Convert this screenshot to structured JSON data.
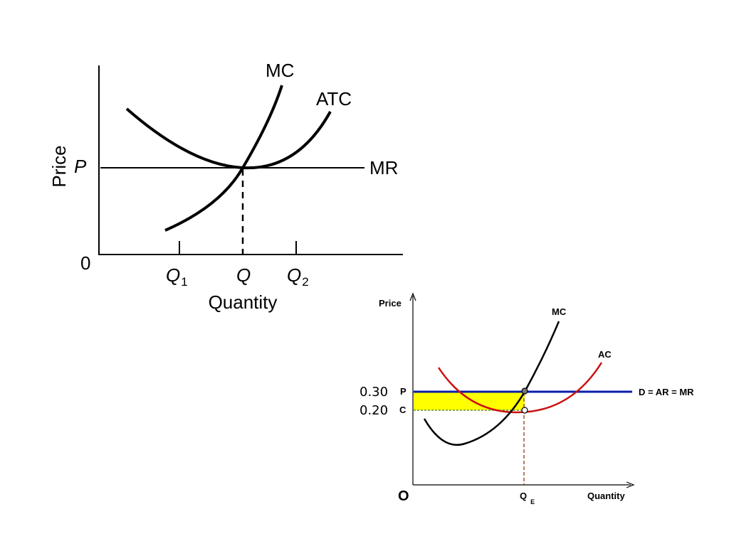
{
  "diagram1": {
    "y_axis_label": "Price",
    "x_axis_label": "Quantity",
    "origin_label": "0",
    "price_label": "P",
    "curves": {
      "mc": "MC",
      "atc": "ATC",
      "mr": "MR"
    },
    "x_ticks": [
      {
        "base": "Q",
        "sub": "1"
      },
      {
        "base": "Q",
        "sub": ""
      },
      {
        "base": "Q",
        "sub": "2"
      }
    ]
  },
  "diagram2": {
    "y_axis_label": "Price",
    "x_axis_label": "Quantity",
    "origin_label": "O",
    "price_label": "P",
    "cost_label": "C",
    "price_value": "0.30",
    "cost_value": "0.20",
    "quantity_label": {
      "base": "Q",
      "sub": "E"
    },
    "curves": {
      "mc": "MC",
      "ac": "AC",
      "demand": "D = AR = MR"
    },
    "colors": {
      "demand_line": "#0a1ea8",
      "ac_curve": "#cc1111",
      "profit_area": "#ffff00",
      "qe_dashed": "#8b2500",
      "c_dashed": "#3a7a2a"
    }
  }
}
